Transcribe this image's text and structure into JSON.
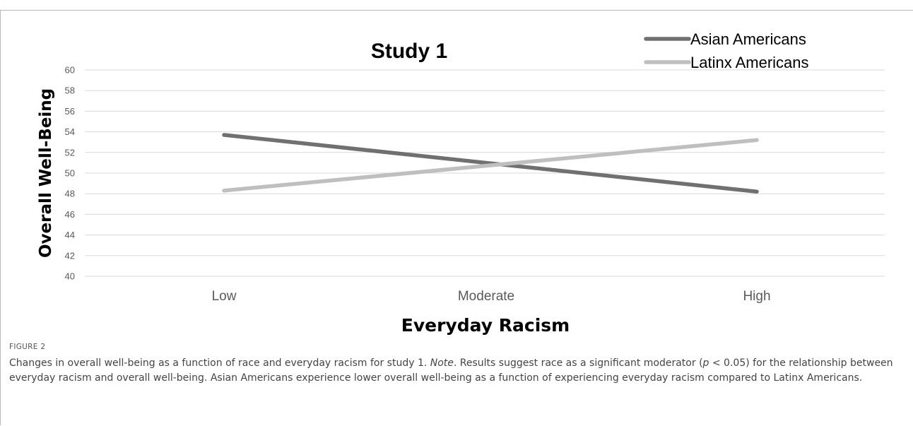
{
  "chart_data": {
    "type": "line",
    "title": "Study 1",
    "xlabel": "Everyday Racism",
    "ylabel": "Overall Well-Being",
    "categories": [
      "Low",
      "Moderate",
      "High"
    ],
    "ylim": [
      40,
      60
    ],
    "yticks": [
      "40",
      "42",
      "44",
      "46",
      "48",
      "50",
      "52",
      "54",
      "56",
      "58",
      "60"
    ],
    "grid": true,
    "legend_position": "top-right",
    "series": [
      {
        "name": "Asian Americans",
        "values": [
          53.7,
          null,
          48.2
        ],
        "color": "#707070"
      },
      {
        "name": "Latinx Americans",
        "values": [
          48.3,
          null,
          53.2
        ],
        "color": "#bfbfbf"
      }
    ]
  },
  "figure": {
    "label": "FIGURE 2",
    "caption_a": "Changes in overall well-being as a function of race and everyday racism for study 1.",
    "caption_note": "Note",
    "caption_b": ". Results suggest race as a significant moderator (",
    "caption_p": "p",
    "caption_c": " < 0.05) for the relationship between everyday racism and overall well-being. Asian Americans experience lower overall well-being as a function of experiencing everyday racism compared to Latinx Americans."
  }
}
